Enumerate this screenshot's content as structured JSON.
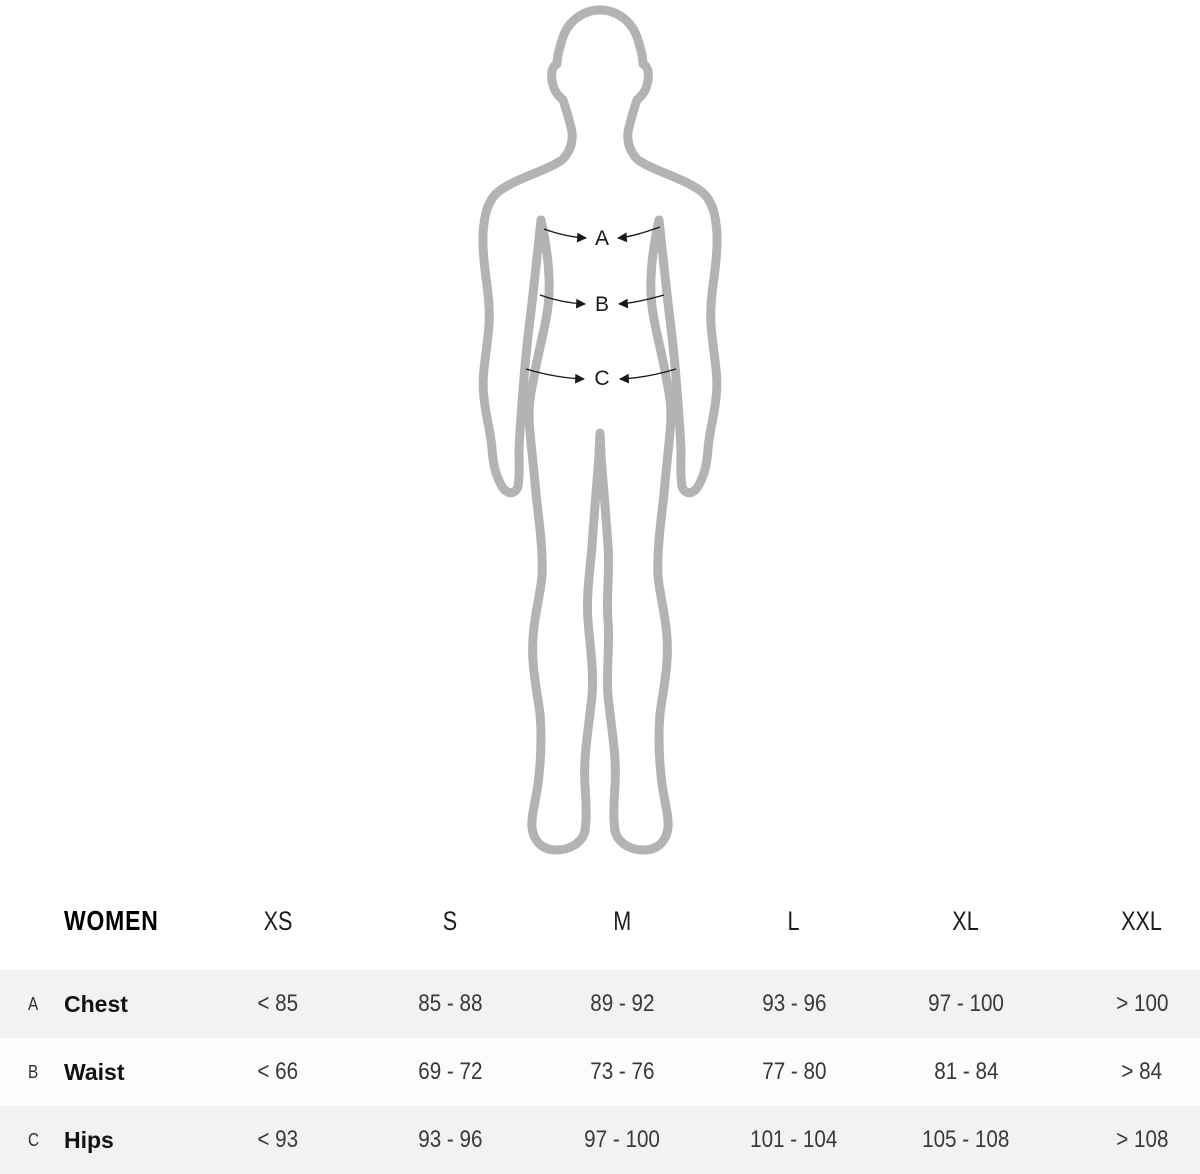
{
  "figure": {
    "markers": [
      {
        "letter": "A"
      },
      {
        "letter": "B"
      },
      {
        "letter": "C"
      }
    ]
  },
  "table": {
    "group_label": "WOMEN",
    "size_headers": [
      "XS",
      "S",
      "M",
      "L",
      "XL",
      "XXL"
    ],
    "rows": [
      {
        "letter": "A",
        "name": "Chest",
        "values": [
          "< 85",
          "85 - 88",
          "89 - 92",
          "93 - 96",
          "97 - 100",
          "> 100"
        ]
      },
      {
        "letter": "B",
        "name": "Waist",
        "values": [
          "< 66",
          "69 - 72",
          "73 - 76",
          "77 - 80",
          "81 - 84",
          "> 84"
        ]
      },
      {
        "letter": "C",
        "name": "Hips",
        "values": [
          "< 93",
          "93 - 96",
          "97 - 100",
          "101 - 104",
          "105 - 108",
          "> 108"
        ]
      }
    ]
  },
  "chart_data": {
    "type": "table",
    "title": "WOMEN size chart",
    "columns": [
      "",
      "XS",
      "S",
      "M",
      "L",
      "XL",
      "XXL"
    ],
    "rows": [
      [
        "A Chest",
        "< 85",
        "85 - 88",
        "89 - 92",
        "93 - 96",
        "97 - 100",
        "> 100"
      ],
      [
        "B Waist",
        "< 66",
        "69 - 72",
        "73 - 76",
        "77 - 80",
        "81 - 84",
        "> 84"
      ],
      [
        "C Hips",
        "< 93",
        "93 - 96",
        "97 - 100",
        "101 - 104",
        "105 - 108",
        "> 108"
      ]
    ]
  },
  "colors": {
    "silhouette": "#b3b3b3",
    "row_stripe": "#f2f2f2",
    "row_alt": "#fcfcfc",
    "arrow": "#1a1a1a",
    "text_primary": "#121212",
    "text_values": "#383838"
  }
}
